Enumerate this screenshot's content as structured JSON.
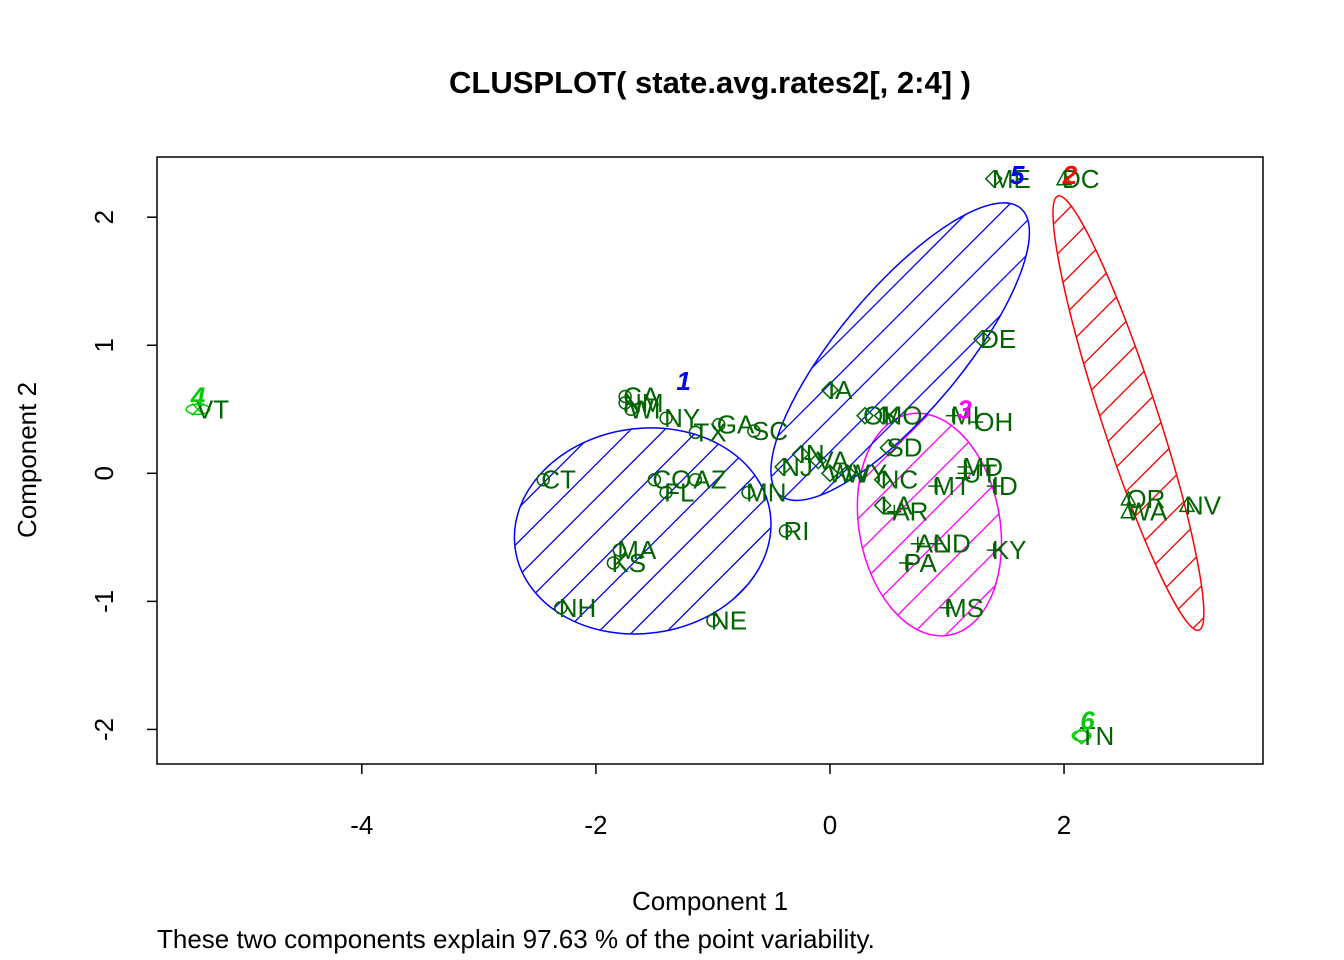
{
  "chart_data": {
    "type": "scatter",
    "title": "CLUSPLOT( state.avg.rates2[, 2:4] )",
    "xlabel": "Component 1",
    "ylabel": "Component 2",
    "subtitle": "These two components explain 97.63 % of the point variability.",
    "xlim": [
      -5.75,
      3.7
    ],
    "ylim": [
      -2.27,
      2.47
    ],
    "x_ticks": [
      -4,
      -2,
      0,
      2
    ],
    "x_tick_labels": [
      "-4",
      "-2",
      "0",
      "2"
    ],
    "y_ticks": [
      -2,
      -1,
      0,
      1,
      2
    ],
    "y_tick_labels": [
      "-2",
      "-1",
      "0",
      "1",
      "2"
    ],
    "grid": false,
    "legend": "none",
    "point_label_color": "#006400",
    "clusters": [
      {
        "id": "1",
        "label": "1",
        "color": "#0000FF",
        "symbol": "circle",
        "center": [
          -1.6,
          -0.45
        ],
        "a": 1.1,
        "b": 0.8,
        "angle_deg": 8,
        "hatch": true,
        "label_pos": [
          -1.25,
          0.72
        ]
      },
      {
        "id": "2",
        "label": "2",
        "color": "#FF0000",
        "symbol": "triangle",
        "center": [
          2.55,
          0.47
        ],
        "a": 1.95,
        "b": 0.22,
        "angle_deg": -72,
        "hatch": true,
        "label_pos": [
          2.05,
          2.33
        ]
      },
      {
        "id": "3",
        "label": "3",
        "color": "#FF00FF",
        "symbol": "plus",
        "center": [
          0.85,
          -0.4
        ],
        "a": 0.96,
        "b": 0.55,
        "angle_deg": -80,
        "hatch": true,
        "label_pos": [
          1.15,
          0.5
        ]
      },
      {
        "id": "4",
        "label": "4",
        "color": "#00CC00",
        "symbol": "x",
        "center": [
          -5.4,
          0.5
        ],
        "a": 0.1,
        "b": 0.04,
        "angle_deg": 0,
        "hatch": false,
        "label_pos": [
          -5.4,
          0.6
        ]
      },
      {
        "id": "5",
        "label": "5",
        "color": "#0000FF",
        "symbol": "diamond",
        "center": [
          0.6,
          0.95
        ],
        "a": 1.6,
        "b": 0.48,
        "angle_deg": 50,
        "hatch": true,
        "label_pos": [
          1.6,
          2.33
        ]
      },
      {
        "id": "6",
        "label": "6",
        "color": "#00CC00",
        "symbol": "diamond",
        "center": [
          2.15,
          -2.05
        ],
        "a": 0.08,
        "b": 0.04,
        "angle_deg": 0,
        "hatch": false,
        "label_pos": [
          2.2,
          -1.93
        ]
      }
    ],
    "points": [
      {
        "label": "VT",
        "x": -5.4,
        "y": 0.5,
        "cluster": "4"
      },
      {
        "label": "CA",
        "x": -1.75,
        "y": 0.6,
        "cluster": "1"
      },
      {
        "label": "NM",
        "x": -1.75,
        "y": 0.55,
        "cluster": "1"
      },
      {
        "label": "WI",
        "x": -1.7,
        "y": 0.5,
        "cluster": "1"
      },
      {
        "label": "NY",
        "x": -1.4,
        "y": 0.43,
        "cluster": "1"
      },
      {
        "label": "TX",
        "x": -1.15,
        "y": 0.32,
        "cluster": "1"
      },
      {
        "label": "GA",
        "x": -0.95,
        "y": 0.38,
        "cluster": "1"
      },
      {
        "label": "SC",
        "x": -0.65,
        "y": 0.33,
        "cluster": "1"
      },
      {
        "label": "CT",
        "x": -2.45,
        "y": -0.05,
        "cluster": "1"
      },
      {
        "label": "CO",
        "x": -1.5,
        "y": -0.05,
        "cluster": "1"
      },
      {
        "label": "AZ",
        "x": -1.15,
        "y": -0.05,
        "cluster": "1"
      },
      {
        "label": "FL",
        "x": -1.4,
        "y": -0.15,
        "cluster": "1"
      },
      {
        "label": "MN",
        "x": -0.7,
        "y": -0.15,
        "cluster": "1"
      },
      {
        "label": "RI",
        "x": -0.38,
        "y": -0.45,
        "cluster": "1"
      },
      {
        "label": "MA",
        "x": -1.8,
        "y": -0.6,
        "cluster": "1"
      },
      {
        "label": "KS",
        "x": -1.85,
        "y": -0.7,
        "cluster": "1"
      },
      {
        "label": "NH",
        "x": -2.3,
        "y": -1.05,
        "cluster": "1"
      },
      {
        "label": "NE",
        "x": -1.0,
        "y": -1.15,
        "cluster": "1"
      },
      {
        "label": "DC",
        "x": 2.0,
        "y": 2.3,
        "cluster": "2"
      },
      {
        "label": "OR",
        "x": 2.55,
        "y": -0.2,
        "cluster": "2"
      },
      {
        "label": "WA",
        "x": 2.55,
        "y": -0.3,
        "cluster": "2"
      },
      {
        "label": "NV",
        "x": 3.05,
        "y": -0.25,
        "cluster": "2"
      },
      {
        "label": "MI",
        "x": 1.05,
        "y": 0.45,
        "cluster": "3"
      },
      {
        "label": "OH",
        "x": 1.25,
        "y": 0.4,
        "cluster": "3"
      },
      {
        "label": "MD",
        "x": 1.15,
        "y": 0.05,
        "cluster": "3"
      },
      {
        "label": "UT",
        "x": 1.15,
        "y": 0.0,
        "cluster": "3"
      },
      {
        "label": "MT",
        "x": 0.9,
        "y": -0.1,
        "cluster": "3"
      },
      {
        "label": "ID",
        "x": 1.4,
        "y": -0.1,
        "cluster": "3"
      },
      {
        "label": "AR",
        "x": 0.55,
        "y": -0.3,
        "cluster": "3"
      },
      {
        "label": "AL",
        "x": 0.75,
        "y": -0.55,
        "cluster": "3"
      },
      {
        "label": "ND",
        "x": 0.9,
        "y": -0.55,
        "cluster": "3"
      },
      {
        "label": "PA",
        "x": 0.65,
        "y": -0.7,
        "cluster": "3"
      },
      {
        "label": "KY",
        "x": 1.4,
        "y": -0.6,
        "cluster": "3"
      },
      {
        "label": "MS",
        "x": 1.0,
        "y": -1.05,
        "cluster": "3"
      },
      {
        "label": "ME",
        "x": 1.4,
        "y": 2.3,
        "cluster": "5"
      },
      {
        "label": "DE",
        "x": 1.3,
        "y": 1.05,
        "cluster": "5"
      },
      {
        "label": "IA",
        "x": 0.0,
        "y": 0.65,
        "cluster": "5"
      },
      {
        "label": "OK",
        "x": 0.3,
        "y": 0.45,
        "cluster": "5"
      },
      {
        "label": "MO",
        "x": 0.45,
        "y": 0.45,
        "cluster": "5"
      },
      {
        "label": "SD",
        "x": 0.5,
        "y": 0.2,
        "cluster": "5"
      },
      {
        "label": "IN",
        "x": -0.25,
        "y": 0.15,
        "cluster": "5"
      },
      {
        "label": "VA",
        "x": -0.1,
        "y": 0.1,
        "cluster": "5"
      },
      {
        "label": "NJ",
        "x": -0.4,
        "y": 0.05,
        "cluster": "5"
      },
      {
        "label": "WV",
        "x": 0.0,
        "y": 0.0,
        "cluster": "5"
      },
      {
        "label": "WY",
        "x": 0.15,
        "y": 0.0,
        "cluster": "5"
      },
      {
        "label": "NC",
        "x": 0.45,
        "y": -0.05,
        "cluster": "5"
      },
      {
        "label": "LA",
        "x": 0.45,
        "y": -0.25,
        "cluster": "5"
      },
      {
        "label": "TN",
        "x": 2.15,
        "y": -2.05,
        "cluster": "6"
      }
    ]
  }
}
